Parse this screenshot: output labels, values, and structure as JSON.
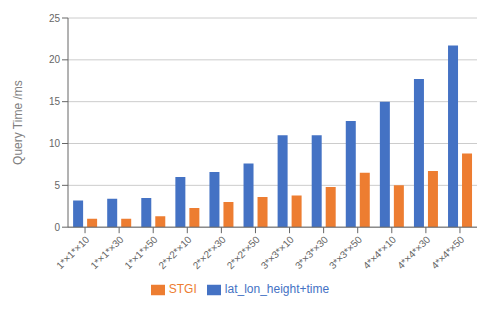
{
  "chart_data": {
    "type": "bar",
    "categories": [
      "1*×1*×10",
      "1*×1*×30",
      "1*×1*×50",
      "2*×2*×10",
      "2*×2*×30",
      "2*×2*×50",
      "3*×3*×10",
      "3*×3*×30",
      "3*×3*×50",
      "4*×4*×10",
      "4*×4*×30",
      "4*×4*×50"
    ],
    "series": [
      {
        "name": "lat_lon_height+time",
        "color": "#4472C4",
        "values": [
          3.2,
          3.4,
          3.5,
          6.0,
          6.6,
          7.6,
          11.0,
          11.0,
          12.7,
          15.0,
          17.7,
          21.7
        ]
      },
      {
        "name": "STGI",
        "color": "#ED7D31",
        "values": [
          1.0,
          1.0,
          1.3,
          2.3,
          3.0,
          3.6,
          3.8,
          4.8,
          6.5,
          5.0,
          6.7,
          8.8
        ]
      }
    ],
    "ylabel": "Query Time /ms",
    "ylim": [
      0,
      25
    ],
    "yticks": [
      0,
      5,
      10,
      15,
      20,
      25
    ],
    "grid": true,
    "legend": "bottom"
  }
}
